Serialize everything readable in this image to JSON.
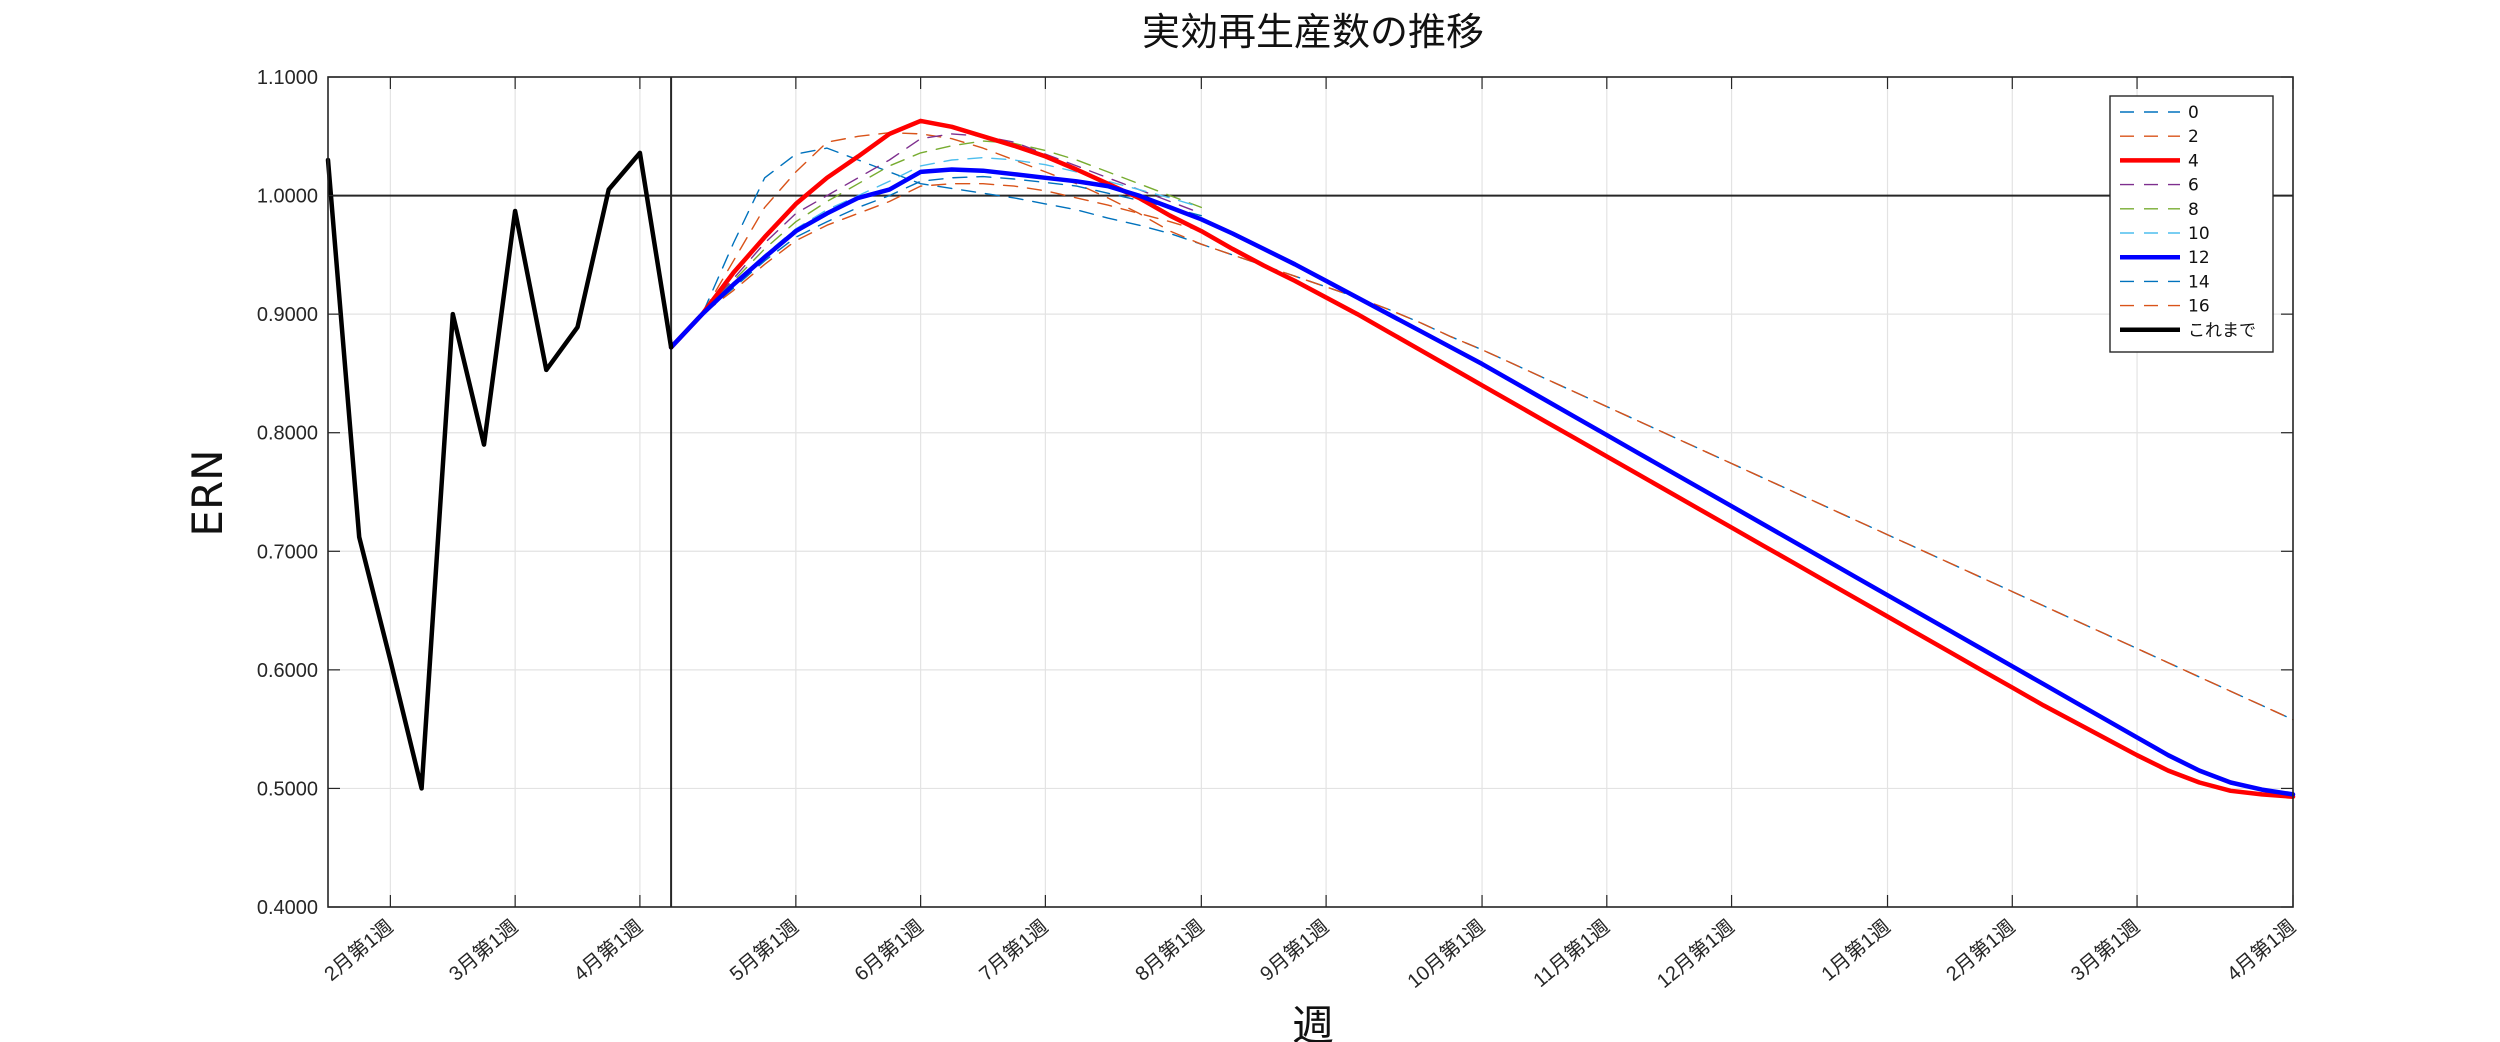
{
  "chart_data": {
    "type": "line",
    "title": "実効再生産数の推移",
    "xlabel": "週",
    "ylabel": "ERN",
    "ylim": [
      0.4,
      1.1
    ],
    "y_ticks": [
      "0.4000",
      "0.5000",
      "0.6000",
      "0.7000",
      "0.8000",
      "0.9000",
      "1.0000",
      "1.1000"
    ],
    "x_range_weeks": [
      0,
      63
    ],
    "x_ticks": [
      {
        "week": 2,
        "label": "2月第1週"
      },
      {
        "week": 6,
        "label": "3月第1週"
      },
      {
        "week": 10,
        "label": "4月第1週"
      },
      {
        "week": 15,
        "label": "5月第1週"
      },
      {
        "week": 19,
        "label": "6月第1週"
      },
      {
        "week": 23,
        "label": "7月第1週"
      },
      {
        "week": 28,
        "label": "8月第1週"
      },
      {
        "week": 32,
        "label": "9月第1週"
      },
      {
        "week": 37,
        "label": "10月第1週"
      },
      {
        "week": 41,
        "label": "11月第1週"
      },
      {
        "week": 45,
        "label": "12月第1週"
      },
      {
        "week": 50,
        "label": "1月第1週"
      },
      {
        "week": 54,
        "label": "2月第1週"
      },
      {
        "week": 58,
        "label": "3月第1週"
      },
      {
        "week": 63,
        "label": "4月第1週"
      }
    ],
    "reference_line_y": 1.0,
    "vertical_marker_week": 11,
    "grid": true,
    "legend_position": "top-right",
    "series": [
      {
        "name": "0",
        "style": "dashed",
        "color": "#0072BD",
        "x": [
          11,
          12,
          13,
          14,
          15,
          16,
          17,
          18,
          19,
          20,
          21,
          22,
          23,
          24,
          25,
          26,
          27,
          28,
          29,
          30,
          31,
          32,
          33,
          34,
          35,
          36,
          37,
          38,
          39,
          40,
          41,
          42,
          43,
          44,
          45,
          46,
          47,
          48,
          49,
          50,
          51,
          52,
          53,
          54,
          55,
          56,
          57,
          58,
          59,
          60,
          61,
          62,
          63
        ],
        "y": [
          0.872,
          0.9,
          0.96,
          1.015,
          1.035,
          1.04,
          1.03,
          1.02,
          1.01,
          1.006,
          1.002,
          0.998,
          0.993,
          0.988,
          0.981,
          0.975,
          0.968,
          0.959,
          0.95,
          0.941,
          0.932,
          0.923,
          0.914,
          0.904,
          0.893,
          0.881,
          0.87,
          0.858,
          0.846,
          0.834,
          0.822,
          0.81,
          0.798,
          0.786,
          0.774,
          0.762,
          0.75,
          0.738,
          0.726,
          0.714,
          0.702,
          0.69,
          0.678,
          0.666,
          0.654,
          0.642,
          0.63,
          0.618,
          0.606,
          0.594,
          0.582,
          0.57,
          0.558
        ]
      },
      {
        "name": "2",
        "style": "dashed",
        "color": "#D95319",
        "x": [
          11,
          12,
          13,
          14,
          15,
          16,
          17,
          18,
          19,
          20,
          21,
          22,
          23,
          24,
          25,
          26,
          27,
          28,
          29,
          30,
          31,
          32,
          33,
          34,
          35,
          36,
          37,
          38,
          39,
          40,
          41,
          42,
          43,
          44,
          45,
          46,
          47,
          48,
          49,
          50,
          51,
          52,
          53,
          54,
          55,
          56,
          57,
          58,
          59,
          60,
          61,
          62,
          63
        ],
        "y": [
          0.872,
          0.9,
          0.945,
          0.99,
          1.02,
          1.045,
          1.05,
          1.053,
          1.052,
          1.048,
          1.04,
          1.03,
          1.02,
          1.01,
          0.998,
          0.985,
          0.97,
          0.959,
          0.95,
          0.941,
          0.932,
          0.923,
          0.914,
          0.904,
          0.893,
          0.881,
          0.87,
          0.858,
          0.846,
          0.834,
          0.822,
          0.81,
          0.798,
          0.786,
          0.774,
          0.762,
          0.75,
          0.738,
          0.726,
          0.714,
          0.702,
          0.69,
          0.678,
          0.666,
          0.654,
          0.642,
          0.63,
          0.618,
          0.606,
          0.594,
          0.582,
          0.57,
          0.558
        ]
      },
      {
        "name": "4",
        "style": "solid-bold",
        "color": "#FF0000",
        "x": [
          11,
          12,
          13,
          14,
          15,
          16,
          17,
          18,
          19,
          20,
          21,
          22,
          23,
          24,
          25,
          26,
          27,
          28,
          29,
          30,
          31,
          32,
          33,
          34,
          35,
          36,
          37,
          38,
          39,
          40,
          41,
          42,
          43,
          44,
          45,
          46,
          47,
          48,
          49,
          50,
          51,
          52,
          53,
          54,
          55,
          56,
          57,
          58,
          59,
          60,
          61,
          62,
          63
        ],
        "y": [
          0.872,
          0.9,
          0.935,
          0.965,
          0.993,
          1.015,
          1.033,
          1.052,
          1.063,
          1.058,
          1.05,
          1.042,
          1.033,
          1.022,
          1.01,
          0.998,
          0.983,
          0.97,
          0.955,
          0.941,
          0.928,
          0.914,
          0.9,
          0.885,
          0.87,
          0.855,
          0.84,
          0.825,
          0.81,
          0.795,
          0.78,
          0.765,
          0.75,
          0.735,
          0.72,
          0.705,
          0.69,
          0.675,
          0.66,
          0.645,
          0.63,
          0.615,
          0.6,
          0.585,
          0.57,
          0.556,
          0.542,
          0.528,
          0.515,
          0.505,
          0.498,
          0.495,
          0.493
        ]
      },
      {
        "name": "6",
        "style": "dashed",
        "color": "#7E2F8E",
        "x": [
          11,
          12,
          13,
          14,
          15,
          16,
          17,
          18,
          19,
          20,
          21,
          22,
          23,
          24,
          25,
          26,
          27,
          28
        ],
        "y": [
          0.872,
          0.9,
          0.93,
          0.96,
          0.985,
          1.0,
          1.015,
          1.03,
          1.048,
          1.052,
          1.05,
          1.045,
          1.035,
          1.025,
          1.015,
          1.005,
          0.995,
          0.985
        ]
      },
      {
        "name": "8",
        "style": "dashed",
        "color": "#77AC30",
        "x": [
          11,
          12,
          13,
          14,
          15,
          16,
          17,
          18,
          19,
          20,
          21,
          22,
          23,
          24,
          25,
          26,
          27,
          28
        ],
        "y": [
          0.872,
          0.9,
          0.928,
          0.955,
          0.978,
          0.995,
          1.01,
          1.025,
          1.036,
          1.042,
          1.046,
          1.044,
          1.038,
          1.03,
          1.02,
          1.01,
          1.0,
          0.99
        ]
      },
      {
        "name": "10",
        "style": "dashed",
        "color": "#4DBEEE",
        "x": [
          11,
          12,
          13,
          14,
          15,
          16,
          17,
          18,
          19,
          20,
          21,
          22,
          23,
          24,
          25,
          26,
          27,
          28
        ],
        "y": [
          0.872,
          0.9,
          0.926,
          0.95,
          0.972,
          0.988,
          1.0,
          1.012,
          1.025,
          1.03,
          1.032,
          1.03,
          1.026,
          1.02,
          1.012,
          1.005,
          0.998,
          0.99
        ]
      },
      {
        "name": "12",
        "style": "solid-bold",
        "color": "#0000FF",
        "x": [
          11,
          12,
          13,
          14,
          15,
          16,
          17,
          18,
          19,
          20,
          21,
          22,
          23,
          24,
          25,
          26,
          27,
          28,
          29,
          30,
          31,
          32,
          33,
          34,
          35,
          36,
          37,
          38,
          39,
          40,
          41,
          42,
          43,
          44,
          45,
          46,
          47,
          48,
          49,
          50,
          51,
          52,
          53,
          54,
          55,
          56,
          57,
          58,
          59,
          60,
          61,
          62,
          63
        ],
        "y": [
          0.872,
          0.9,
          0.925,
          0.948,
          0.97,
          0.985,
          0.998,
          1.005,
          1.02,
          1.022,
          1.021,
          1.018,
          1.015,
          1.012,
          1.008,
          1.0,
          0.99,
          0.98,
          0.968,
          0.955,
          0.942,
          0.928,
          0.914,
          0.9,
          0.886,
          0.872,
          0.858,
          0.843,
          0.828,
          0.813,
          0.798,
          0.783,
          0.768,
          0.753,
          0.738,
          0.723,
          0.708,
          0.693,
          0.678,
          0.663,
          0.648,
          0.633,
          0.618,
          0.603,
          0.588,
          0.573,
          0.558,
          0.543,
          0.528,
          0.515,
          0.505,
          0.499,
          0.495
        ]
      },
      {
        "name": "14",
        "style": "dashed",
        "color": "#0072BD",
        "x": [
          11,
          12,
          13,
          14,
          15,
          16,
          17,
          18,
          19,
          20,
          21,
          22,
          23,
          24,
          25,
          26,
          27,
          28
        ],
        "y": [
          0.872,
          0.9,
          0.922,
          0.945,
          0.965,
          0.978,
          0.99,
          1.0,
          1.012,
          1.015,
          1.016,
          1.014,
          1.011,
          1.008,
          1.002,
          0.996,
          0.99,
          0.983
        ]
      },
      {
        "name": "16",
        "style": "dashed",
        "color": "#D95319",
        "x": [
          11,
          12,
          13,
          14,
          15,
          16,
          17,
          18,
          19,
          20,
          21,
          22,
          23,
          24,
          25,
          26,
          27,
          28
        ],
        "y": [
          0.872,
          0.9,
          0.92,
          0.942,
          0.962,
          0.975,
          0.985,
          0.995,
          1.008,
          1.01,
          1.01,
          1.008,
          1.004,
          0.998,
          0.992,
          0.985,
          0.978,
          0.97
        ]
      },
      {
        "name": "これまで",
        "style": "solid-bold",
        "color": "#000000",
        "x": [
          0,
          1,
          2,
          3,
          4,
          5,
          6,
          7,
          8,
          9,
          10,
          11
        ],
        "y": [
          1.03,
          0.712,
          0.608,
          0.5,
          0.9,
          0.79,
          0.987,
          0.853,
          0.889,
          1.005,
          1.036,
          0.872
        ]
      }
    ]
  }
}
